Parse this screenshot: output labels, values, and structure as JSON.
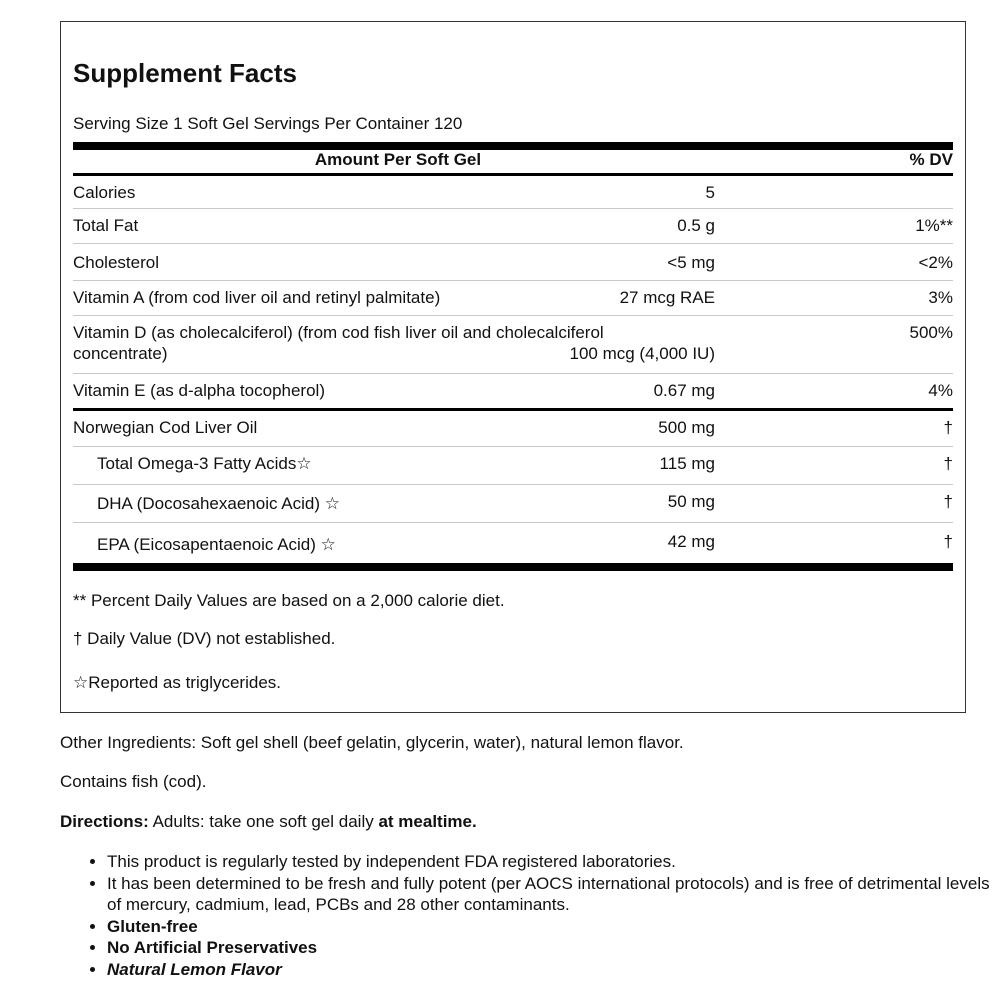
{
  "title": "Supplement Facts",
  "serving": "Serving Size 1 Soft Gel Servings Per Container 120",
  "header": {
    "amount": "Amount Per Soft Gel",
    "dv": "% DV"
  },
  "rows": [
    {
      "name": "Calories",
      "amount": "5",
      "dv": ""
    },
    {
      "name": "Total Fat",
      "amount": "0.5 g",
      "dv": "1%**"
    },
    {
      "name": "Cholesterol",
      "amount": "<5 mg",
      "dv": "<2%"
    },
    {
      "name": "Vitamin A (from cod liver oil and retinyl palmitate)",
      "amount": "27 mcg RAE",
      "dv": "3%"
    },
    {
      "name": "Vitamin D (as cholecalciferol) (from cod fish liver oil and cholecalciferol concentrate)",
      "amount": "100 mcg (4,000 IU)",
      "dv": "500%"
    },
    {
      "name": "Vitamin E (as d-alpha tocopherol)",
      "amount": "0.67 mg",
      "dv": "4%"
    },
    {
      "name": "Norwegian Cod Liver Oil",
      "amount": "500 mg",
      "dv": "†"
    },
    {
      "name": "Total Omega-3 Fatty Acids☆",
      "amount": "115 mg",
      "dv": "†"
    },
    {
      "name": "DHA (Docosahexaenoic Acid) ☆",
      "amount": "50 mg",
      "dv": "†"
    },
    {
      "name": "EPA (Eicosapentaenoic Acid) ☆",
      "amount": "42 mg",
      "dv": "†"
    }
  ],
  "footnotes": [
    "** Percent Daily Values are based on a 2,000 calorie diet.",
    "† Daily Value (DV) not established.",
    "☆Reported as triglycerides."
  ],
  "other_ingredients": "Other Ingredients: Soft gel shell (beef gelatin, glycerin, water), natural lemon flavor.",
  "contains": "Contains fish (cod).",
  "directions": {
    "label": "Directions:",
    "text": " Adults: take one soft gel daily ",
    "emphasis": "at mealtime."
  },
  "bullets": [
    "This product is regularly tested by independent FDA registered laboratories.",
    "It has been determined to be fresh and fully potent (per AOCS international protocols) and is free of detrimental levels of mercury, cadmium, lead, PCBs and 28 other contaminants.",
    "Gluten-free",
    "No Artificial Preservatives",
    "Natural Lemon Flavor"
  ]
}
